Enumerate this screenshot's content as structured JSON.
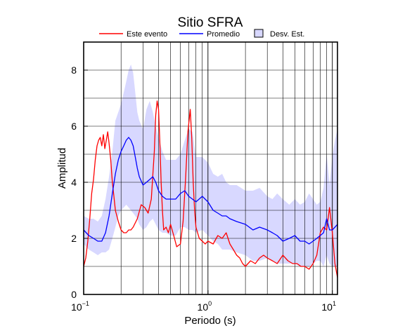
{
  "chart_data": {
    "type": "line",
    "title": "Sitio SFRA",
    "xlabel": "Periodo (s)",
    "ylabel": "Amplitud",
    "xscale": "log",
    "xlim": [
      0.1,
      11
    ],
    "ylim": [
      0,
      9
    ],
    "grid": true,
    "legend_position": "top",
    "x_ticks": [
      {
        "value": 0.1,
        "base": "10",
        "exp": "−1"
      },
      {
        "value": 1,
        "base": "10",
        "exp": "0"
      },
      {
        "value": 10,
        "base": "10",
        "exp": "1"
      }
    ],
    "y_ticks": [
      0,
      2,
      4,
      6,
      8
    ],
    "legend": [
      {
        "label": "Este evento",
        "kind": "line",
        "color": "#ff0000"
      },
      {
        "label": "Promedio",
        "kind": "line",
        "color": "#0000ff"
      },
      {
        "label": "Desv. Est.",
        "kind": "band",
        "color": "#d8d8ff"
      }
    ],
    "series": [
      {
        "name": "Este evento",
        "color": "#ff0000",
        "x": [
          0.1,
          0.104,
          0.108,
          0.112,
          0.116,
          0.12,
          0.124,
          0.128,
          0.132,
          0.136,
          0.14,
          0.144,
          0.148,
          0.152,
          0.156,
          0.16,
          0.165,
          0.17,
          0.175,
          0.18,
          0.19,
          0.2,
          0.21,
          0.22,
          0.23,
          0.24,
          0.25,
          0.27,
          0.29,
          0.31,
          0.33,
          0.35,
          0.37,
          0.38,
          0.39,
          0.4,
          0.41,
          0.42,
          0.43,
          0.44,
          0.46,
          0.48,
          0.5,
          0.53,
          0.56,
          0.6,
          0.63,
          0.66,
          0.69,
          0.72,
          0.74,
          0.76,
          0.78,
          0.8,
          0.85,
          0.9,
          0.95,
          1.0,
          1.1,
          1.2,
          1.3,
          1.4,
          1.5,
          1.6,
          1.7,
          1.8,
          1.9,
          2.0,
          2.2,
          2.4,
          2.6,
          2.8,
          3.0,
          3.3,
          3.6,
          4.0,
          4.4,
          4.8,
          5.2,
          5.6,
          6.0,
          6.5,
          7.0,
          7.5,
          8.0,
          8.5,
          9.0,
          9.5,
          10.0,
          10.5,
          11.0
        ],
        "values": [
          1.0,
          1.3,
          1.9,
          2.7,
          3.6,
          4.1,
          4.8,
          5.3,
          5.5,
          5.6,
          5.3,
          5.7,
          5.2,
          5.5,
          5.8,
          5.4,
          4.8,
          4.0,
          3.5,
          3.0,
          2.6,
          2.3,
          2.2,
          2.2,
          2.3,
          2.3,
          2.4,
          2.7,
          3.2,
          3.1,
          2.9,
          3.4,
          5.1,
          6.4,
          6.9,
          6.6,
          5.4,
          4.0,
          3.0,
          2.3,
          2.4,
          2.2,
          2.5,
          2.1,
          1.7,
          1.8,
          2.6,
          4.1,
          5.8,
          6.6,
          5.6,
          4.0,
          3.0,
          2.4,
          2.0,
          1.9,
          1.8,
          1.9,
          1.8,
          2.1,
          2.0,
          2.2,
          1.8,
          1.6,
          1.4,
          1.3,
          1.1,
          1.0,
          1.2,
          1.1,
          1.3,
          1.4,
          1.3,
          1.2,
          1.1,
          1.4,
          1.2,
          1.1,
          1.1,
          1.0,
          1.0,
          0.9,
          1.1,
          1.4,
          2.2,
          2.4,
          2.3,
          3.1,
          2.2,
          1.1,
          0.6
        ]
      },
      {
        "name": "Promedio",
        "color": "#0000ff",
        "x": [
          0.1,
          0.11,
          0.12,
          0.13,
          0.14,
          0.15,
          0.16,
          0.17,
          0.18,
          0.19,
          0.2,
          0.21,
          0.22,
          0.23,
          0.24,
          0.25,
          0.26,
          0.27,
          0.28,
          0.3,
          0.32,
          0.34,
          0.36,
          0.38,
          0.4,
          0.43,
          0.46,
          0.5,
          0.55,
          0.6,
          0.65,
          0.7,
          0.75,
          0.8,
          0.9,
          1.0,
          1.1,
          1.2,
          1.3,
          1.4,
          1.5,
          1.7,
          2.0,
          2.3,
          2.6,
          3.0,
          3.3,
          3.6,
          4.0,
          4.5,
          5.0,
          5.5,
          6.0,
          6.5,
          7.0,
          7.5,
          8.0,
          8.5,
          9.0,
          9.5,
          10.0,
          10.5,
          11.0
        ],
        "values": [
          2.3,
          2.1,
          2.0,
          1.9,
          1.9,
          2.2,
          2.8,
          3.6,
          4.3,
          4.8,
          5.1,
          5.3,
          5.5,
          5.6,
          5.5,
          5.3,
          4.9,
          4.5,
          4.2,
          3.9,
          4.0,
          4.1,
          4.2,
          4.0,
          3.7,
          3.5,
          3.4,
          3.4,
          3.4,
          3.6,
          3.7,
          3.5,
          3.4,
          3.3,
          3.5,
          3.3,
          3.0,
          2.9,
          2.8,
          2.8,
          2.7,
          2.6,
          2.5,
          2.3,
          2.4,
          2.3,
          2.2,
          2.1,
          1.9,
          2.0,
          2.1,
          1.9,
          1.9,
          1.8,
          1.9,
          2.0,
          2.1,
          2.2,
          2.7,
          2.3,
          2.3,
          2.4,
          2.5
        ]
      }
    ],
    "band": {
      "name": "Desv. Est.",
      "color": "#d8d8ff",
      "x": [
        0.1,
        0.11,
        0.12,
        0.13,
        0.14,
        0.15,
        0.16,
        0.17,
        0.18,
        0.19,
        0.2,
        0.21,
        0.22,
        0.23,
        0.24,
        0.25,
        0.26,
        0.27,
        0.28,
        0.3,
        0.32,
        0.34,
        0.36,
        0.38,
        0.4,
        0.43,
        0.46,
        0.5,
        0.55,
        0.6,
        0.65,
        0.7,
        0.75,
        0.8,
        0.9,
        1.0,
        1.1,
        1.2,
        1.3,
        1.4,
        1.5,
        1.7,
        2.0,
        2.3,
        2.6,
        3.0,
        3.3,
        3.6,
        4.0,
        4.5,
        5.0,
        5.5,
        6.0,
        6.5,
        7.0,
        7.5,
        8.0,
        8.5,
        9.0,
        9.5,
        10.0,
        10.5,
        11.0
      ],
      "upper": [
        2.8,
        2.7,
        2.7,
        2.6,
        2.8,
        3.4,
        4.2,
        5.1,
        6.2,
        6.5,
        6.8,
        7.2,
        7.6,
        8.0,
        8.2,
        7.9,
        7.2,
        6.5,
        6.2,
        5.9,
        6.6,
        6.9,
        6.5,
        6.0,
        5.6,
        5.1,
        4.8,
        4.8,
        4.8,
        5.0,
        5.5,
        5.9,
        5.8,
        4.9,
        4.9,
        4.7,
        4.3,
        4.2,
        4.3,
        4.0,
        3.9,
        3.9,
        3.7,
        3.7,
        3.8,
        3.5,
        3.4,
        3.6,
        3.4,
        3.2,
        3.4,
        3.2,
        3.3,
        3.6,
        3.4,
        3.2,
        3.3,
        3.8,
        5.0,
        3.9,
        4.9,
        5.5,
        5.9
      ],
      "lower": [
        1.8,
        1.6,
        1.5,
        1.4,
        1.5,
        1.5,
        1.6,
        2.0,
        2.4,
        2.8,
        3.0,
        3.1,
        3.2,
        3.1,
        3.0,
        2.9,
        2.8,
        2.7,
        2.5,
        2.3,
        2.4,
        2.6,
        2.7,
        2.5,
        2.3,
        2.2,
        2.2,
        2.1,
        2.1,
        2.4,
        2.4,
        2.3,
        2.3,
        2.2,
        2.3,
        2.1,
        1.9,
        1.8,
        1.6,
        1.6,
        1.6,
        1.5,
        1.4,
        1.2,
        1.2,
        1.3,
        1.2,
        1.1,
        1.1,
        1.1,
        1.1,
        1.0,
        1.0,
        1.0,
        1.1,
        1.2,
        1.2,
        1.0,
        1.4,
        1.1,
        1.0,
        1.0,
        1.0
      ]
    }
  }
}
